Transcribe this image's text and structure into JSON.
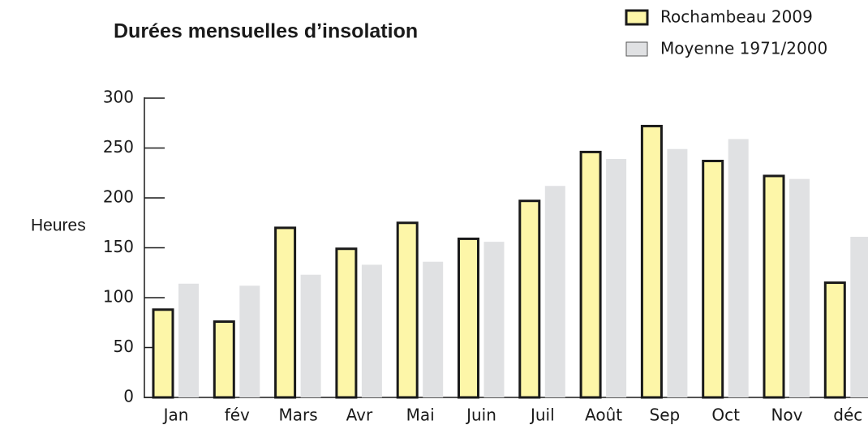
{
  "chart_data": {
    "type": "bar",
    "title": "Durées mensuelles d’insolation",
    "y_label": "Heures",
    "categories": [
      "Jan",
      "fév",
      "Mars",
      "Avr",
      "Mai",
      "Juin",
      "Juil",
      "Août",
      "Sep",
      "Oct",
      "Nov",
      "déc"
    ],
    "series": [
      {
        "name": "Rochambeau 2009",
        "color": "#fdf6a8",
        "values": [
          88,
          76,
          170,
          149,
          175,
          159,
          197,
          246,
          272,
          237,
          222,
          115
        ]
      },
      {
        "name": "Moyenne 1971/2000",
        "color": "#e0e1e3",
        "values": [
          114,
          112,
          123,
          133,
          136,
          156,
          212,
          239,
          249,
          259,
          219,
          161
        ]
      }
    ],
    "ylim": [
      0,
      300
    ],
    "yticks": [
      0,
      50,
      100,
      150,
      200,
      250,
      300
    ],
    "grid": false,
    "legend": "top-right"
  }
}
